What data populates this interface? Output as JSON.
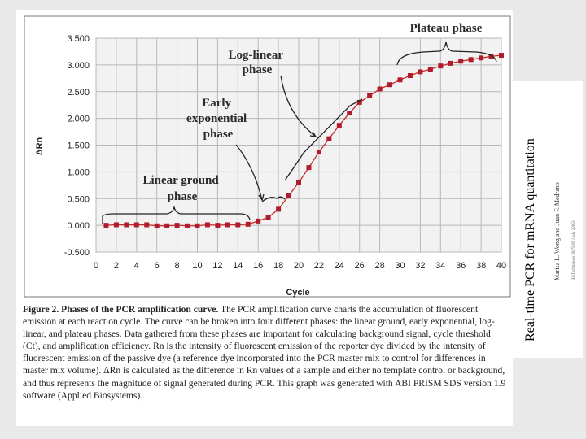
{
  "side": {
    "title": "Real-time PCR for mRNA quantitation",
    "authors": "Marisa L. Wong and Juan F. Medrano",
    "reference": "BioTechniques 39:75-85 (July 2005)"
  },
  "caption": {
    "label": "Figure 2. Phases of the PCR amplification curve.",
    "text": " The PCR amplification curve charts the accumulation of fluorescent emission at each reaction cycle. The curve can be broken into four different phases: the linear ground, early exponential, log-linear, and plateau phases. Data gathered from these phases are important for calculating background signal, cycle threshold (Ct), and amplification efficiency. Rn is the intensity of fluorescent emission of the reporter dye divided by the intensity of fluorescent emission of the passive dye (a reference dye incorporated into the PCR master mix to control for differences in master mix volume). ΔRn is calculated as the difference in Rn values of a sample and either no template control or background, and thus represents the magnitude of signal generated during PCR. This graph was generated with ABI PRISM SDS version 1.9 software (Applied Biosystems)."
  },
  "chart_data": {
    "type": "line",
    "xlabel": "Cycle",
    "ylabel": "ΔRn",
    "xlim": [
      0,
      40
    ],
    "ylim": [
      -0.5,
      3.5
    ],
    "xticks": [
      "0",
      "2",
      "4",
      "6",
      "8",
      "10",
      "12",
      "14",
      "16",
      "18",
      "20",
      "22",
      "24",
      "26",
      "28",
      "30",
      "32",
      "34",
      "36",
      "38",
      "40"
    ],
    "yticks": [
      "3.500",
      "3.000",
      "2.500",
      "2.000",
      "1.500",
      "1.000",
      "0.500",
      "0.000",
      "-0.500"
    ],
    "grid": true,
    "colors": {
      "line": "#cc2a2a",
      "marker": "#b01c2c",
      "plot_bg": "#f2f2f2",
      "grid": "#b8b8b8"
    },
    "series": [
      {
        "x": [
          1,
          2,
          3,
          4,
          5,
          6,
          7,
          8,
          9,
          10,
          11,
          12,
          13,
          14,
          15,
          16,
          17,
          18,
          19,
          20,
          21,
          22,
          23,
          24,
          25,
          26,
          27,
          28,
          29,
          30,
          31,
          32,
          33,
          34,
          35,
          36,
          37,
          38,
          39,
          40
        ],
        "values": [
          0.0,
          0.01,
          0.01,
          0.01,
          0.01,
          -0.01,
          -0.01,
          0.0,
          -0.01,
          -0.01,
          0.01,
          0.0,
          0.01,
          0.01,
          0.02,
          0.08,
          0.15,
          0.3,
          0.55,
          0.8,
          1.08,
          1.37,
          1.62,
          1.87,
          2.1,
          2.3,
          2.42,
          2.55,
          2.63,
          2.72,
          2.8,
          2.87,
          2.92,
          2.98,
          3.03,
          3.07,
          3.1,
          3.13,
          3.16,
          3.18
        ]
      }
    ],
    "annotations": [
      {
        "label": [
          "Plateau phase"
        ]
      },
      {
        "label": [
          "Log-linear",
          "phase"
        ]
      },
      {
        "label": [
          "Early",
          "exponential",
          "phase"
        ]
      },
      {
        "label": [
          "Linear ground",
          "phase"
        ]
      }
    ]
  }
}
